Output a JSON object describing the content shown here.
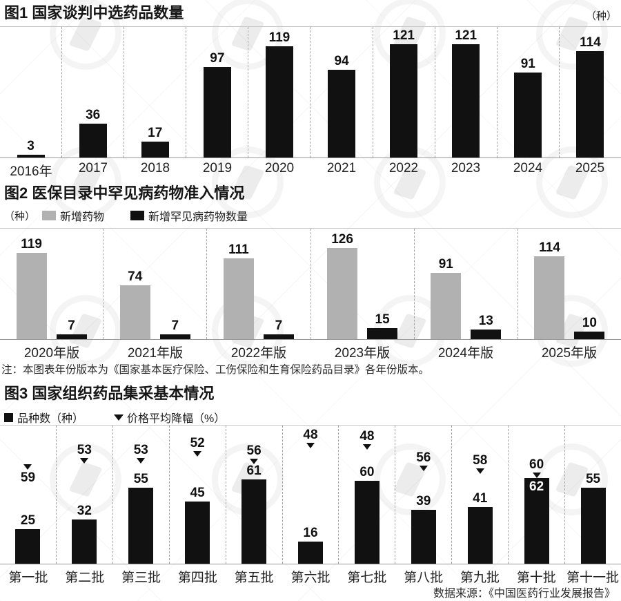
{
  "accent_colors": {
    "bar_black": "#111111",
    "bar_gray": "#b1b1b1",
    "axis": "#979797"
  },
  "chart_data": [
    {
      "id": "chart1",
      "type": "bar",
      "title": "图1 国家谈判中选药品数量",
      "unit": "（种）",
      "categories": [
        "2016年",
        "2017",
        "2018",
        "2019",
        "2020",
        "2021",
        "2022",
        "2023",
        "2024",
        "2025"
      ],
      "values": [
        3,
        36,
        17,
        97,
        119,
        94,
        121,
        121,
        91,
        114
      ],
      "bar_color": "#111111",
      "xlabel": "",
      "ylabel": "",
      "ylim": [
        0,
        130
      ],
      "layout_hints": {
        "grid": "dashed vertical separators between categories",
        "value_labels": "above bars"
      }
    },
    {
      "id": "chart2",
      "type": "bar",
      "title": "图2 医保目录中罕见病药物准入情况",
      "unit": "（种）",
      "categories": [
        "2020年版",
        "2021年版",
        "2022年版",
        "2023年版",
        "2024年版",
        "2025年版"
      ],
      "series": [
        {
          "name": "新增药物",
          "color": "#b1b1b1",
          "values": [
            119,
            74,
            111,
            126,
            91,
            114
          ]
        },
        {
          "name": "新增罕见病药物数量",
          "color": "#111111",
          "values": [
            7,
            7,
            7,
            15,
            13,
            10
          ]
        }
      ],
      "note": "注：本图表年份版本为《国家基本医疗保险、工伤保险和生育保险药品目录》各年份版本。",
      "xlabel": "",
      "ylabel": "",
      "ylim": [
        0,
        140
      ],
      "layout_hints": {
        "grid": "dashed vertical separators between groups",
        "legend_position": "top-left",
        "value_labels": "above bars"
      }
    },
    {
      "id": "chart3",
      "type": "bar",
      "title": "图3 国家组织药品集采基本情况",
      "categories": [
        "第一批",
        "第二批",
        "第三批",
        "第四批",
        "第五批",
        "第六批",
        "第七批",
        "第八批",
        "第九批",
        "第十批",
        "第十一批"
      ],
      "series": [
        {
          "name": "品种数（种）",
          "swatch": "black-square",
          "color": "#111111",
          "values": [
            25,
            32,
            55,
            45,
            61,
            16,
            60,
            39,
            41,
            62,
            55
          ]
        },
        {
          "name": "价格平均降幅（%）",
          "swatch": "down-arrow",
          "color": "#111111",
          "values": [
            59,
            53,
            53,
            52,
            56,
            48,
            48,
            56,
            58,
            60,
            null
          ]
        }
      ],
      "source": "数据来源：《中国医药行业发展报告》",
      "xlabel": "",
      "ylabel": "",
      "ylim": [
        0,
        70
      ],
      "layout_hints": {
        "grid": "dashed vertical separators between categories",
        "special": "第十批 bar value 62 shown in white inside bar; 第一批 marker drawn arrow above number",
        "value_labels": "above bars; price-cut markers float with down arrows"
      }
    }
  ]
}
